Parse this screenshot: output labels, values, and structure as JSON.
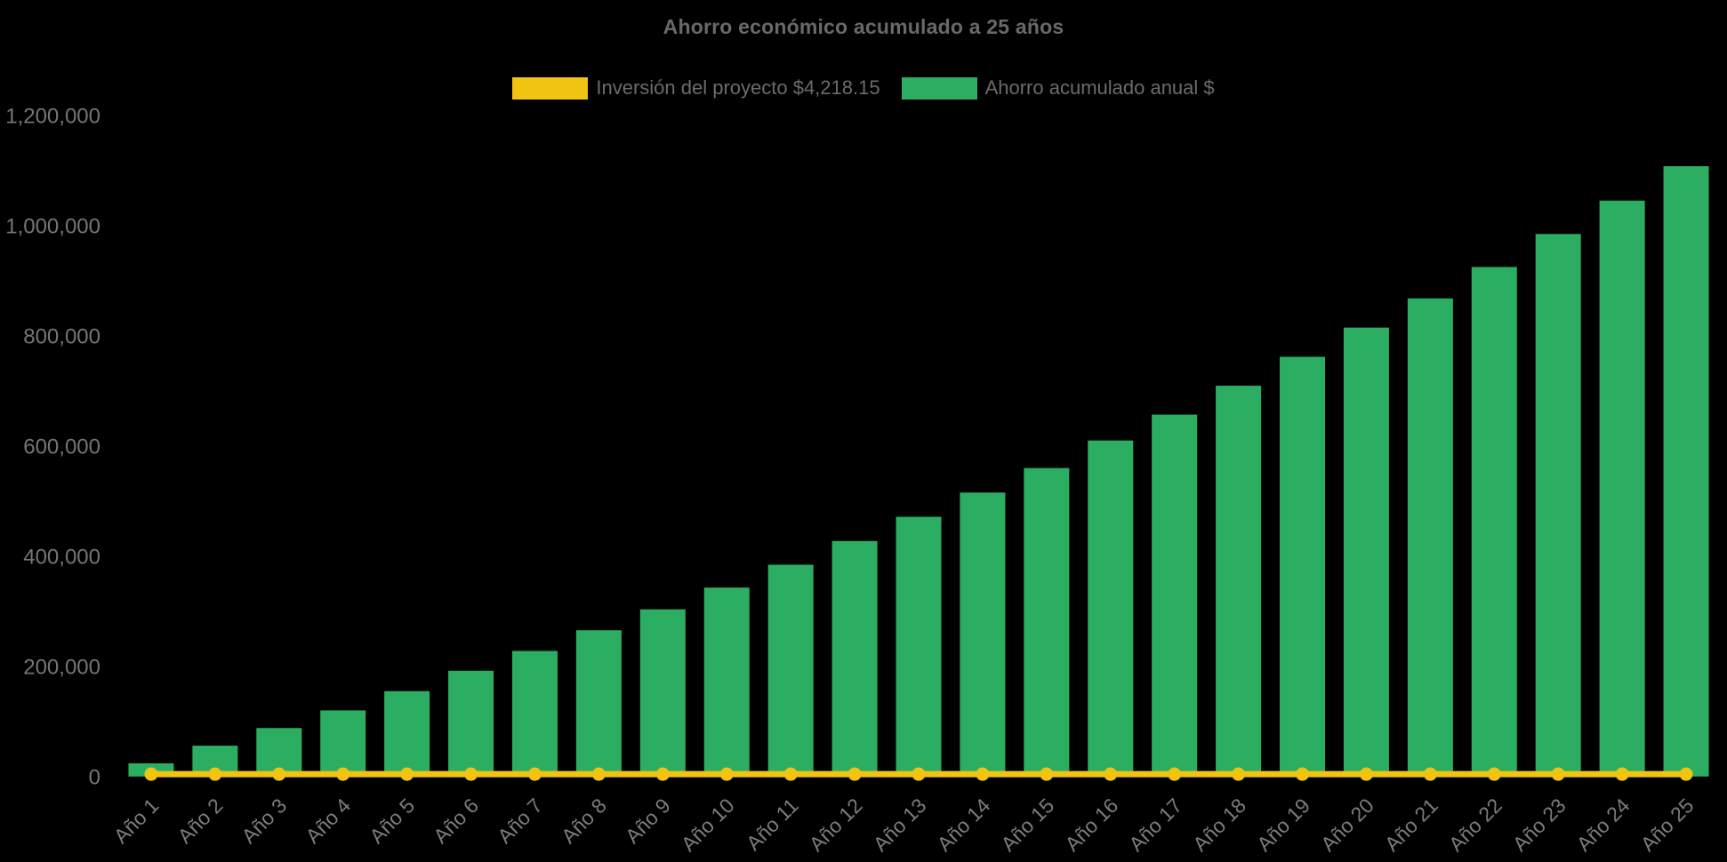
{
  "page": {
    "background": "#000000"
  },
  "chart_data": {
    "type": "bar",
    "title": "Ahorro económico acumulado a 25 años",
    "categories": [
      "Año 1",
      "Año 2",
      "Año 3",
      "Año 4",
      "Año 5",
      "Año 6",
      "Año 7",
      "Año 8",
      "Año 9",
      "Año 10",
      "Año 11",
      "Año 12",
      "Año 13",
      "Año 14",
      "Año 15",
      "Año 16",
      "Año 17",
      "Año 18",
      "Año 19",
      "Año 20",
      "Año 21",
      "Año 22",
      "Año 23",
      "Año 24",
      "Año 25"
    ],
    "series": [
      {
        "name": "Inversión del proyecto $4,218.15",
        "type": "line",
        "color": "#f0c411",
        "constant_value": 4218.15
      },
      {
        "name": "Ahorro acumulado anual $",
        "type": "bar",
        "color": "#2bad62",
        "values": [
          24000,
          56000,
          88000,
          120000,
          155000,
          192000,
          228000,
          265500,
          303500,
          343000,
          384500,
          427500,
          471500,
          515500,
          560000,
          610000,
          657000,
          709500,
          762000,
          815000,
          868000,
          925000,
          985000,
          1045500,
          1108000
        ]
      }
    ],
    "xlabel": "",
    "ylabel": "",
    "ylim": [
      0,
      1200000
    ],
    "ytick_step": 200000,
    "ytick_labels": [
      "0",
      "200,000",
      "400,000",
      "600,000",
      "800,000",
      "1,000,000",
      "1,200,000"
    ],
    "grid": false,
    "legend_position": "top",
    "x_label_rotation": -45
  },
  "colors": {
    "bar": "#2bad62",
    "line": "#f0c411",
    "title_text": "#696969",
    "legend_text": "#6b6b6b",
    "tick_text": "#757575",
    "background": "#000000"
  }
}
